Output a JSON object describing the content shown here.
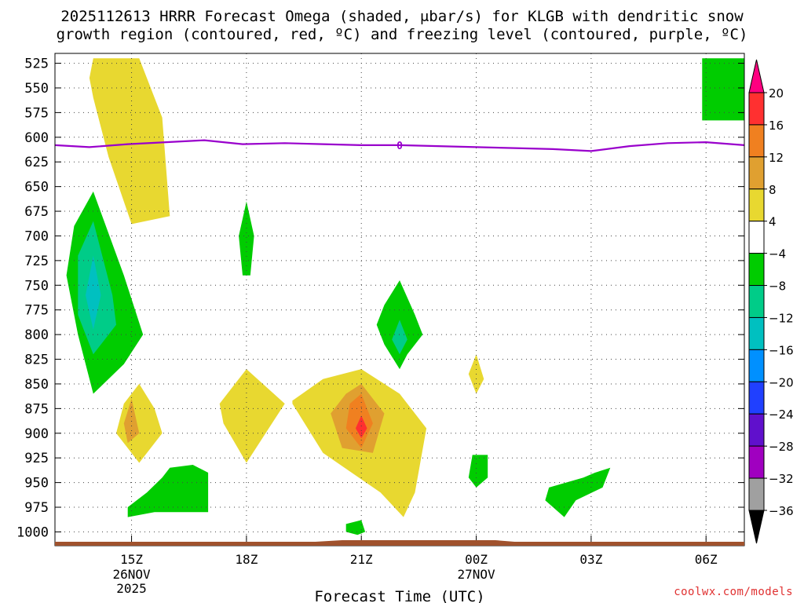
{
  "title": {
    "line1": "2025112613 HRRR Forecast Omega (shaded, μbar/s) for KLGB with dendritic snow",
    "line2": "growth region (contoured, red, ºC) and freezing level (contoured, purple, ºC)"
  },
  "watermark": "coolwx.com/models",
  "chart_data": {
    "type": "heatmap",
    "title": "2025112613 HRRR Forecast Omega (shaded, μbar/s) for KLGB with dendritic snow growth region (contoured, red, ºC) and freezing level (contoured, purple, ºC)",
    "xlabel": "Forecast Time (UTC)",
    "ylabel": "",
    "y_axis": {
      "reversed": true,
      "ylim": [
        1010,
        515
      ],
      "ticks": [
        525,
        550,
        575,
        600,
        625,
        650,
        675,
        700,
        725,
        750,
        775,
        800,
        825,
        850,
        875,
        900,
        925,
        950,
        975,
        1000
      ]
    },
    "x_axis": {
      "xlim": [
        13.0,
        31.0
      ],
      "ticks": [
        {
          "h": 15,
          "label": "15Z",
          "sub1": "26NOV",
          "sub2": "2025"
        },
        {
          "h": 18,
          "label": "18Z",
          "sub1": "",
          "sub2": ""
        },
        {
          "h": 21,
          "label": "21Z",
          "sub1": "",
          "sub2": ""
        },
        {
          "h": 24,
          "label": "00Z",
          "sub1": "27NOV",
          "sub2": ""
        },
        {
          "h": 27,
          "label": "03Z",
          "sub1": "",
          "sub2": ""
        },
        {
          "h": 30,
          "label": "06Z",
          "sub1": "",
          "sub2": ""
        }
      ]
    },
    "grid": true,
    "colorbar": {
      "labels": [
        "20",
        "16",
        "12",
        "8",
        "4",
        "−4",
        "−8",
        "−12",
        "−16",
        "−20",
        "−24",
        "−28",
        "−32",
        "−36"
      ],
      "colors": [
        "#ff0080",
        "#ff3030",
        "#f08020",
        "#e0a030",
        "#e8d830",
        "#ffffff",
        "#00cc00",
        "#00cc88",
        "#00c0c0",
        "#0090ff",
        "#2040ff",
        "#6010cc",
        "#a000c0",
        "#a0a0a0",
        "#000000"
      ]
    },
    "freezing_level": {
      "label": "0",
      "color": "#9900cc",
      "points": [
        [
          13.0,
          608
        ],
        [
          13.9,
          610
        ],
        [
          14.9,
          607
        ],
        [
          15.9,
          605
        ],
        [
          16.9,
          603
        ],
        [
          17.9,
          607
        ],
        [
          19.0,
          606
        ],
        [
          20.0,
          607
        ],
        [
          21.0,
          608
        ],
        [
          22.0,
          608
        ],
        [
          23.0,
          609
        ],
        [
          24.0,
          610
        ],
        [
          25.0,
          611
        ],
        [
          26.0,
          612
        ],
        [
          27.0,
          614
        ],
        [
          28.0,
          609
        ],
        [
          29.0,
          606
        ],
        [
          30.0,
          605
        ],
        [
          31.0,
          608
        ]
      ]
    },
    "omega_regions": [
      {
        "value": 6,
        "color": "#e8d830",
        "points": [
          [
            14.0,
            520
          ],
          [
            15.2,
            520
          ],
          [
            15.8,
            580
          ],
          [
            16.0,
            680
          ],
          [
            15.0,
            688
          ],
          [
            14.4,
            620
          ],
          [
            14.0,
            560
          ],
          [
            13.9,
            540
          ]
        ]
      },
      {
        "value": 6,
        "color": "#e8d830",
        "points": [
          [
            15.2,
            850
          ],
          [
            15.6,
            875
          ],
          [
            15.8,
            900
          ],
          [
            15.2,
            930
          ],
          [
            14.6,
            900
          ],
          [
            14.8,
            870
          ]
        ]
      },
      {
        "value": 10,
        "color": "#e0a030",
        "points": [
          [
            15.0,
            865
          ],
          [
            15.2,
            900
          ],
          [
            14.9,
            910
          ],
          [
            14.8,
            890
          ]
        ]
      },
      {
        "value": 6,
        "color": "#e8d830",
        "points": [
          [
            18.0,
            835
          ],
          [
            19.0,
            870
          ],
          [
            18.5,
            900
          ],
          [
            18.0,
            930
          ],
          [
            17.4,
            890
          ],
          [
            17.3,
            870
          ]
        ]
      },
      {
        "value": 6,
        "color": "#e8d830",
        "points": [
          [
            19.2,
            867
          ],
          [
            20.0,
            845
          ],
          [
            21.0,
            835
          ],
          [
            22.0,
            860
          ],
          [
            22.7,
            895
          ],
          [
            22.4,
            960
          ],
          [
            22.1,
            985
          ],
          [
            21.5,
            960
          ],
          [
            20.0,
            920
          ],
          [
            19.2,
            870
          ]
        ]
      },
      {
        "value": 10,
        "color": "#e0a030",
        "points": [
          [
            21.0,
            850
          ],
          [
            21.6,
            880
          ],
          [
            21.3,
            920
          ],
          [
            20.5,
            915
          ],
          [
            20.2,
            880
          ],
          [
            20.6,
            860
          ]
        ]
      },
      {
        "value": 14,
        "color": "#f08020",
        "points": [
          [
            21.0,
            860
          ],
          [
            21.3,
            890
          ],
          [
            21.0,
            915
          ],
          [
            20.6,
            895
          ],
          [
            20.7,
            870
          ]
        ]
      },
      {
        "value": 18,
        "color": "#ff3030",
        "points": [
          [
            21.0,
            882
          ],
          [
            21.15,
            895
          ],
          [
            21.0,
            905
          ],
          [
            20.85,
            895
          ]
        ]
      },
      {
        "value": 6,
        "color": "#e8d830",
        "points": [
          [
            24.0,
            820
          ],
          [
            24.2,
            845
          ],
          [
            24.0,
            860
          ],
          [
            23.8,
            840
          ]
        ]
      },
      {
        "value": -6,
        "color": "#00cc00",
        "points": [
          [
            14.0,
            655
          ],
          [
            14.8,
            740
          ],
          [
            15.3,
            800
          ],
          [
            14.8,
            830
          ],
          [
            14.0,
            860
          ],
          [
            13.6,
            800
          ],
          [
            13.3,
            740
          ],
          [
            13.5,
            690
          ]
        ]
      },
      {
        "value": -10,
        "color": "#00cc88",
        "points": [
          [
            14.0,
            685
          ],
          [
            14.5,
            760
          ],
          [
            14.6,
            790
          ],
          [
            14.0,
            820
          ],
          [
            13.6,
            780
          ],
          [
            13.6,
            720
          ]
        ]
      },
      {
        "value": -14,
        "color": "#00c0c0",
        "points": [
          [
            14.0,
            720
          ],
          [
            14.2,
            760
          ],
          [
            14.0,
            795
          ],
          [
            13.8,
            760
          ]
        ]
      },
      {
        "value": -6,
        "color": "#00cc00",
        "points": [
          [
            18.0,
            665
          ],
          [
            18.2,
            700
          ],
          [
            18.1,
            740
          ],
          [
            17.9,
            740
          ],
          [
            17.8,
            700
          ]
        ]
      },
      {
        "value": -6,
        "color": "#00cc00",
        "points": [
          [
            22.0,
            745
          ],
          [
            22.4,
            780
          ],
          [
            22.6,
            800
          ],
          [
            22.2,
            820
          ],
          [
            22.0,
            835
          ],
          [
            21.6,
            810
          ],
          [
            21.4,
            790
          ],
          [
            21.6,
            770
          ]
        ]
      },
      {
        "value": -10,
        "color": "#00cc88",
        "points": [
          [
            22.0,
            785
          ],
          [
            22.2,
            805
          ],
          [
            22.0,
            820
          ],
          [
            21.8,
            805
          ]
        ]
      },
      {
        "value": -6,
        "color": "#00cc00",
        "points": [
          [
            15.8,
            945
          ],
          [
            16.0,
            935
          ],
          [
            16.6,
            932
          ],
          [
            17.0,
            940
          ],
          [
            17.0,
            980
          ],
          [
            15.6,
            980
          ],
          [
            14.9,
            985
          ],
          [
            14.9,
            975
          ],
          [
            15.4,
            960
          ]
        ]
      },
      {
        "value": -6,
        "color": "#00cc00",
        "points": [
          [
            20.6,
            992
          ],
          [
            21.0,
            988
          ],
          [
            21.1,
            1000
          ],
          [
            20.9,
            1003
          ],
          [
            20.6,
            1000
          ]
        ]
      },
      {
        "value": -6,
        "color": "#00cc00",
        "points": [
          [
            23.9,
            922
          ],
          [
            24.3,
            922
          ],
          [
            24.3,
            945
          ],
          [
            24.0,
            955
          ],
          [
            23.8,
            945
          ]
        ]
      },
      {
        "value": -6,
        "color": "#00cc00",
        "points": [
          [
            26.8,
            945
          ],
          [
            27.1,
            940
          ],
          [
            27.5,
            935
          ],
          [
            27.3,
            955
          ],
          [
            26.6,
            968
          ],
          [
            26.3,
            985
          ],
          [
            25.8,
            968
          ],
          [
            25.9,
            955
          ]
        ]
      },
      {
        "value": -6,
        "color": "#00cc00",
        "points": [
          [
            29.9,
            520
          ],
          [
            31.0,
            520
          ],
          [
            31.0,
            583
          ],
          [
            29.9,
            583
          ]
        ]
      }
    ],
    "terrain": {
      "color": "#a0522d"
    }
  }
}
